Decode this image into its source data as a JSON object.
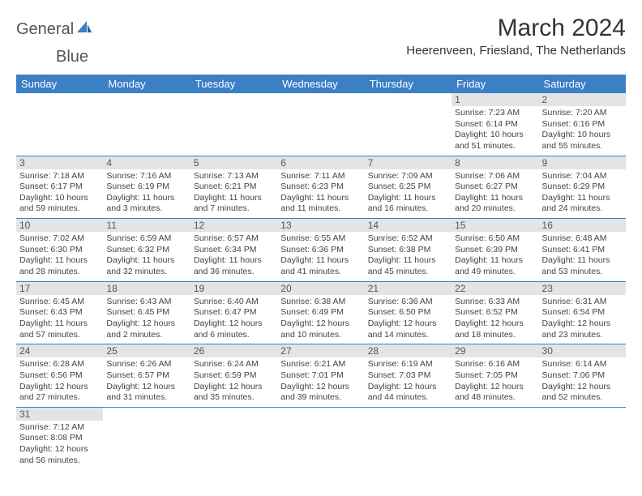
{
  "logo": {
    "textA": "General",
    "textB": "Blue"
  },
  "title": "March 2024",
  "location": "Heerenveen, Friesland, The Netherlands",
  "colors": {
    "headerBar": "#3b7fc4",
    "dayNumBg": "#e4e4e4",
    "rowBorder": "#3b7fc4",
    "text": "#333333"
  },
  "dayNames": [
    "Sunday",
    "Monday",
    "Tuesday",
    "Wednesday",
    "Thursday",
    "Friday",
    "Saturday"
  ],
  "weeks": [
    [
      {
        "n": "",
        "sr": "",
        "ss": "",
        "dl": ""
      },
      {
        "n": "",
        "sr": "",
        "ss": "",
        "dl": ""
      },
      {
        "n": "",
        "sr": "",
        "ss": "",
        "dl": ""
      },
      {
        "n": "",
        "sr": "",
        "ss": "",
        "dl": ""
      },
      {
        "n": "",
        "sr": "",
        "ss": "",
        "dl": ""
      },
      {
        "n": "1",
        "sr": "Sunrise: 7:23 AM",
        "ss": "Sunset: 6:14 PM",
        "dl": "Daylight: 10 hours and 51 minutes."
      },
      {
        "n": "2",
        "sr": "Sunrise: 7:20 AM",
        "ss": "Sunset: 6:16 PM",
        "dl": "Daylight: 10 hours and 55 minutes."
      }
    ],
    [
      {
        "n": "3",
        "sr": "Sunrise: 7:18 AM",
        "ss": "Sunset: 6:17 PM",
        "dl": "Daylight: 10 hours and 59 minutes."
      },
      {
        "n": "4",
        "sr": "Sunrise: 7:16 AM",
        "ss": "Sunset: 6:19 PM",
        "dl": "Daylight: 11 hours and 3 minutes."
      },
      {
        "n": "5",
        "sr": "Sunrise: 7:13 AM",
        "ss": "Sunset: 6:21 PM",
        "dl": "Daylight: 11 hours and 7 minutes."
      },
      {
        "n": "6",
        "sr": "Sunrise: 7:11 AM",
        "ss": "Sunset: 6:23 PM",
        "dl": "Daylight: 11 hours and 11 minutes."
      },
      {
        "n": "7",
        "sr": "Sunrise: 7:09 AM",
        "ss": "Sunset: 6:25 PM",
        "dl": "Daylight: 11 hours and 16 minutes."
      },
      {
        "n": "8",
        "sr": "Sunrise: 7:06 AM",
        "ss": "Sunset: 6:27 PM",
        "dl": "Daylight: 11 hours and 20 minutes."
      },
      {
        "n": "9",
        "sr": "Sunrise: 7:04 AM",
        "ss": "Sunset: 6:29 PM",
        "dl": "Daylight: 11 hours and 24 minutes."
      }
    ],
    [
      {
        "n": "10",
        "sr": "Sunrise: 7:02 AM",
        "ss": "Sunset: 6:30 PM",
        "dl": "Daylight: 11 hours and 28 minutes."
      },
      {
        "n": "11",
        "sr": "Sunrise: 6:59 AM",
        "ss": "Sunset: 6:32 PM",
        "dl": "Daylight: 11 hours and 32 minutes."
      },
      {
        "n": "12",
        "sr": "Sunrise: 6:57 AM",
        "ss": "Sunset: 6:34 PM",
        "dl": "Daylight: 11 hours and 36 minutes."
      },
      {
        "n": "13",
        "sr": "Sunrise: 6:55 AM",
        "ss": "Sunset: 6:36 PM",
        "dl": "Daylight: 11 hours and 41 minutes."
      },
      {
        "n": "14",
        "sr": "Sunrise: 6:52 AM",
        "ss": "Sunset: 6:38 PM",
        "dl": "Daylight: 11 hours and 45 minutes."
      },
      {
        "n": "15",
        "sr": "Sunrise: 6:50 AM",
        "ss": "Sunset: 6:39 PM",
        "dl": "Daylight: 11 hours and 49 minutes."
      },
      {
        "n": "16",
        "sr": "Sunrise: 6:48 AM",
        "ss": "Sunset: 6:41 PM",
        "dl": "Daylight: 11 hours and 53 minutes."
      }
    ],
    [
      {
        "n": "17",
        "sr": "Sunrise: 6:45 AM",
        "ss": "Sunset: 6:43 PM",
        "dl": "Daylight: 11 hours and 57 minutes."
      },
      {
        "n": "18",
        "sr": "Sunrise: 6:43 AM",
        "ss": "Sunset: 6:45 PM",
        "dl": "Daylight: 12 hours and 2 minutes."
      },
      {
        "n": "19",
        "sr": "Sunrise: 6:40 AM",
        "ss": "Sunset: 6:47 PM",
        "dl": "Daylight: 12 hours and 6 minutes."
      },
      {
        "n": "20",
        "sr": "Sunrise: 6:38 AM",
        "ss": "Sunset: 6:49 PM",
        "dl": "Daylight: 12 hours and 10 minutes."
      },
      {
        "n": "21",
        "sr": "Sunrise: 6:36 AM",
        "ss": "Sunset: 6:50 PM",
        "dl": "Daylight: 12 hours and 14 minutes."
      },
      {
        "n": "22",
        "sr": "Sunrise: 6:33 AM",
        "ss": "Sunset: 6:52 PM",
        "dl": "Daylight: 12 hours and 18 minutes."
      },
      {
        "n": "23",
        "sr": "Sunrise: 6:31 AM",
        "ss": "Sunset: 6:54 PM",
        "dl": "Daylight: 12 hours and 23 minutes."
      }
    ],
    [
      {
        "n": "24",
        "sr": "Sunrise: 6:28 AM",
        "ss": "Sunset: 6:56 PM",
        "dl": "Daylight: 12 hours and 27 minutes."
      },
      {
        "n": "25",
        "sr": "Sunrise: 6:26 AM",
        "ss": "Sunset: 6:57 PM",
        "dl": "Daylight: 12 hours and 31 minutes."
      },
      {
        "n": "26",
        "sr": "Sunrise: 6:24 AM",
        "ss": "Sunset: 6:59 PM",
        "dl": "Daylight: 12 hours and 35 minutes."
      },
      {
        "n": "27",
        "sr": "Sunrise: 6:21 AM",
        "ss": "Sunset: 7:01 PM",
        "dl": "Daylight: 12 hours and 39 minutes."
      },
      {
        "n": "28",
        "sr": "Sunrise: 6:19 AM",
        "ss": "Sunset: 7:03 PM",
        "dl": "Daylight: 12 hours and 44 minutes."
      },
      {
        "n": "29",
        "sr": "Sunrise: 6:16 AM",
        "ss": "Sunset: 7:05 PM",
        "dl": "Daylight: 12 hours and 48 minutes."
      },
      {
        "n": "30",
        "sr": "Sunrise: 6:14 AM",
        "ss": "Sunset: 7:06 PM",
        "dl": "Daylight: 12 hours and 52 minutes."
      }
    ],
    [
      {
        "n": "31",
        "sr": "Sunrise: 7:12 AM",
        "ss": "Sunset: 8:08 PM",
        "dl": "Daylight: 12 hours and 56 minutes."
      },
      {
        "n": "",
        "sr": "",
        "ss": "",
        "dl": ""
      },
      {
        "n": "",
        "sr": "",
        "ss": "",
        "dl": ""
      },
      {
        "n": "",
        "sr": "",
        "ss": "",
        "dl": ""
      },
      {
        "n": "",
        "sr": "",
        "ss": "",
        "dl": ""
      },
      {
        "n": "",
        "sr": "",
        "ss": "",
        "dl": ""
      },
      {
        "n": "",
        "sr": "",
        "ss": "",
        "dl": ""
      }
    ]
  ]
}
